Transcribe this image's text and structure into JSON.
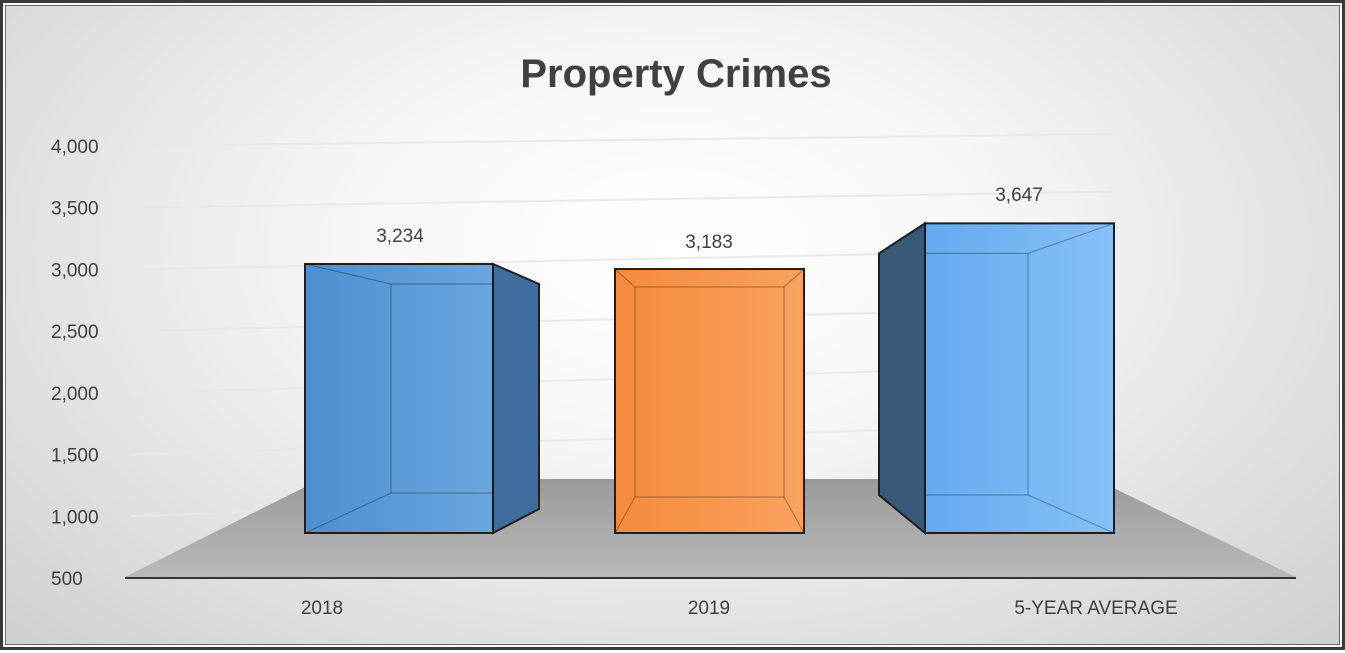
{
  "chart_data": {
    "type": "bar",
    "title": "Property Crimes",
    "xlabel": "",
    "ylabel": "",
    "categories": [
      "2018",
      "2019",
      "5-YEAR AVERAGE"
    ],
    "values": [
      3234,
      3183,
      3647
    ],
    "value_labels": [
      "3,234",
      "3,183",
      "3,647"
    ],
    "ylim": [
      500,
      4000
    ],
    "yticks": [
      500,
      1000,
      1500,
      2000,
      2500,
      3000,
      3500,
      4000
    ],
    "ytick_labels": [
      "500",
      "1,000",
      "1,500",
      "2,000",
      "2,500",
      "3,000",
      "3,500",
      "4,000"
    ],
    "bar_colors": [
      "#5b9bd5",
      "#f79646",
      "#6cb2f0"
    ],
    "grid": true,
    "legend": "none",
    "style": "3d-perspective"
  }
}
